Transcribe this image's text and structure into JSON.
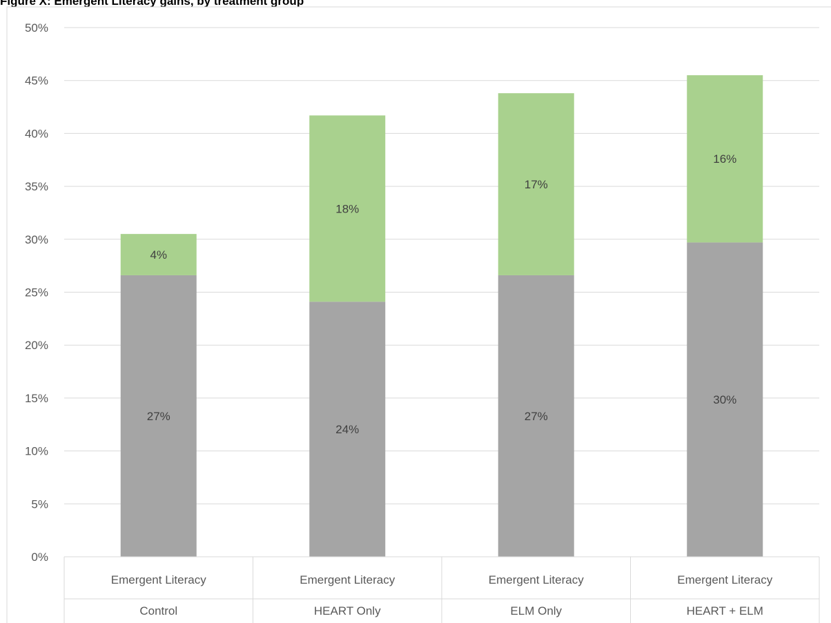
{
  "title_fragment": "Figure X: Emergent Literacy gains, by treatment group",
  "colors": {
    "baseline": "#a5a5a5",
    "gain": "#a9d18e",
    "grid": "#d9d9d9",
    "text": "#595959"
  },
  "chart_data": {
    "type": "bar",
    "stacked": true,
    "outer_category": "Emergent Literacy",
    "categories": [
      "Control",
      "HEART Only",
      "ELM Only",
      "HEART + ELM"
    ],
    "series": [
      {
        "values": [
          26.6,
          24.1,
          26.6,
          29.7
        ],
        "labels": [
          "27%",
          "24%",
          "27%",
          "30%"
        ],
        "color": "#a5a5a5"
      },
      {
        "values": [
          3.9,
          17.6,
          17.2,
          15.8
        ],
        "labels": [
          "4%",
          "18%",
          "17%",
          "16%"
        ],
        "color": "#a9d18e"
      }
    ],
    "ylim": [
      0,
      50
    ],
    "yticks": [
      "0%",
      "5%",
      "10%",
      "15%",
      "20%",
      "25%",
      "30%",
      "35%",
      "40%",
      "45%",
      "50%"
    ],
    "grid": true,
    "legend": "none"
  }
}
